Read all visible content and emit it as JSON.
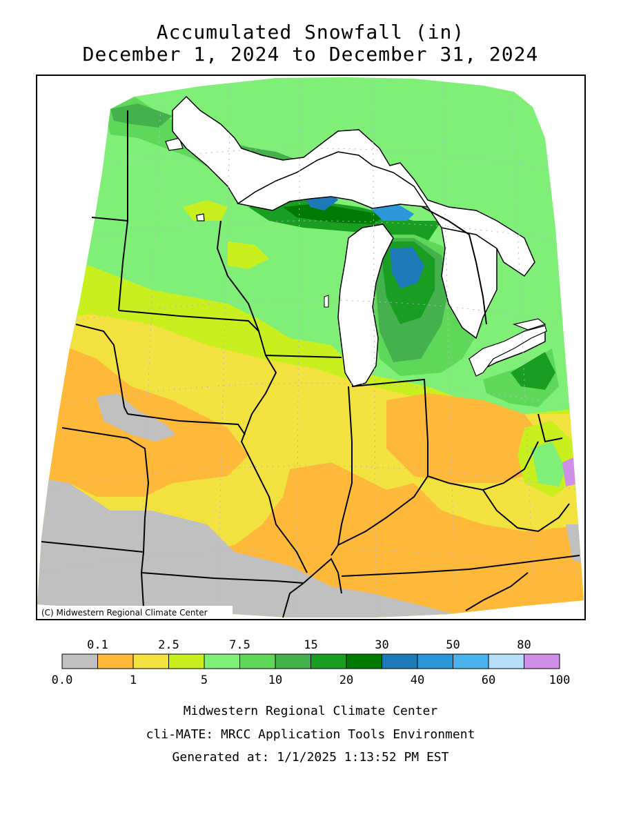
{
  "title": {
    "line1": "Accumulated Snowfall (in)",
    "line2": "December 1, 2024 to December 31, 2024"
  },
  "map": {
    "copyright": "(C) Midwestern Regional Climate Center",
    "colors": {
      "lake": "#ffffff",
      "borders": "#000000",
      "graticule": "#b4b4d8"
    }
  },
  "legend": {
    "upper_labels": [
      "0.1",
      "2.5",
      "7.5",
      "15",
      "30",
      "50",
      "80"
    ],
    "lower_labels": [
      "0.0",
      "1",
      "5",
      "10",
      "20",
      "40",
      "60",
      "100"
    ],
    "bins": [
      {
        "range": "0.0-0.1",
        "color": "#c0c0c0"
      },
      {
        "range": "0.1-1",
        "color": "#ffb93a"
      },
      {
        "range": "1-2.5",
        "color": "#f2e23f"
      },
      {
        "range": "2.5-5",
        "color": "#c9ef1e"
      },
      {
        "range": "5-7.5",
        "color": "#80ef78"
      },
      {
        "range": "7.5-10",
        "color": "#5fd85a"
      },
      {
        "range": "10-15",
        "color": "#44b14c"
      },
      {
        "range": "15-20",
        "color": "#1a9e22"
      },
      {
        "range": "20-30",
        "color": "#007a00"
      },
      {
        "range": "30-40",
        "color": "#1d79b8"
      },
      {
        "range": "40-50",
        "color": "#2a98d9"
      },
      {
        "range": "50-60",
        "color": "#4ab3ec"
      },
      {
        "range": "60-80",
        "color": "#b7dffa"
      },
      {
        "range": "80-100",
        "color": "#cf8ee8"
      }
    ]
  },
  "footer": {
    "line1": "Midwestern Regional Climate Center",
    "line2": "cli-MATE: MRCC Application Tools Environment",
    "line3": "Generated at: 1/1/2025 1:13:52 PM EST"
  }
}
